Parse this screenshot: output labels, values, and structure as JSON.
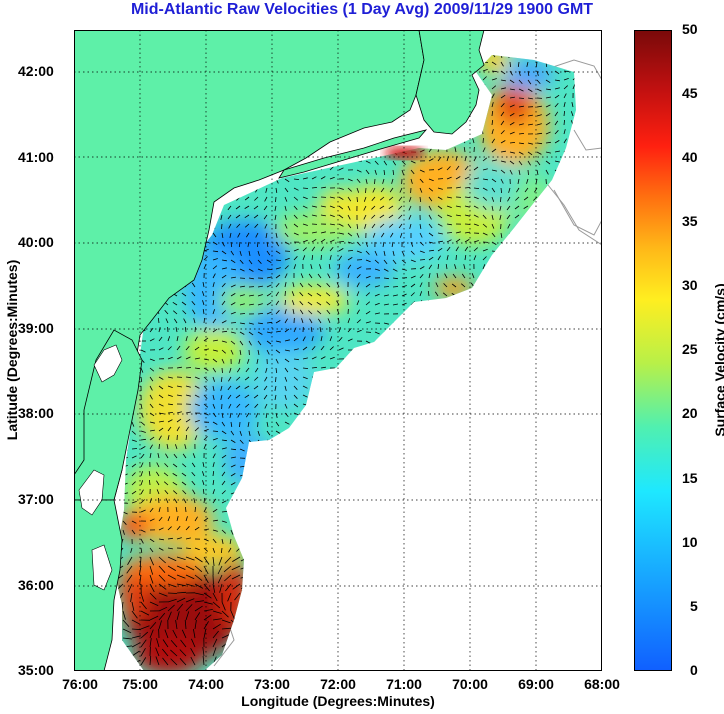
{
  "title": "Mid-Atlantic Raw Velocities (1 Day Avg) 2009/11/29 1900 GMT",
  "axes": {
    "xlabel": "Longitude (Degrees:Minutes)",
    "ylabel": "Latitude (Degrees:Minutes)",
    "x_ticks": [
      "76:00",
      "75:00",
      "74:00",
      "73:00",
      "72:00",
      "71:00",
      "70:00",
      "69:00",
      "68:00"
    ],
    "y_ticks": [
      "42:00",
      "41:00",
      "40:00",
      "39:00",
      "38:00",
      "37:00",
      "36:00",
      "35:00"
    ],
    "xlim": [
      -76,
      -68
    ],
    "ylim": [
      35,
      42.5
    ],
    "grid": "dotted"
  },
  "colorbar": {
    "label": "Surface Velocity (cm/s)",
    "ticks": [
      "50",
      "45",
      "40",
      "35",
      "30",
      "25",
      "20",
      "15",
      "10",
      "5",
      "0"
    ],
    "range": [
      0,
      50
    ],
    "colormap": "jet"
  },
  "colors": {
    "land": "#5ef0a8",
    "coast": "#000000",
    "title": "#1f1fd6"
  }
}
